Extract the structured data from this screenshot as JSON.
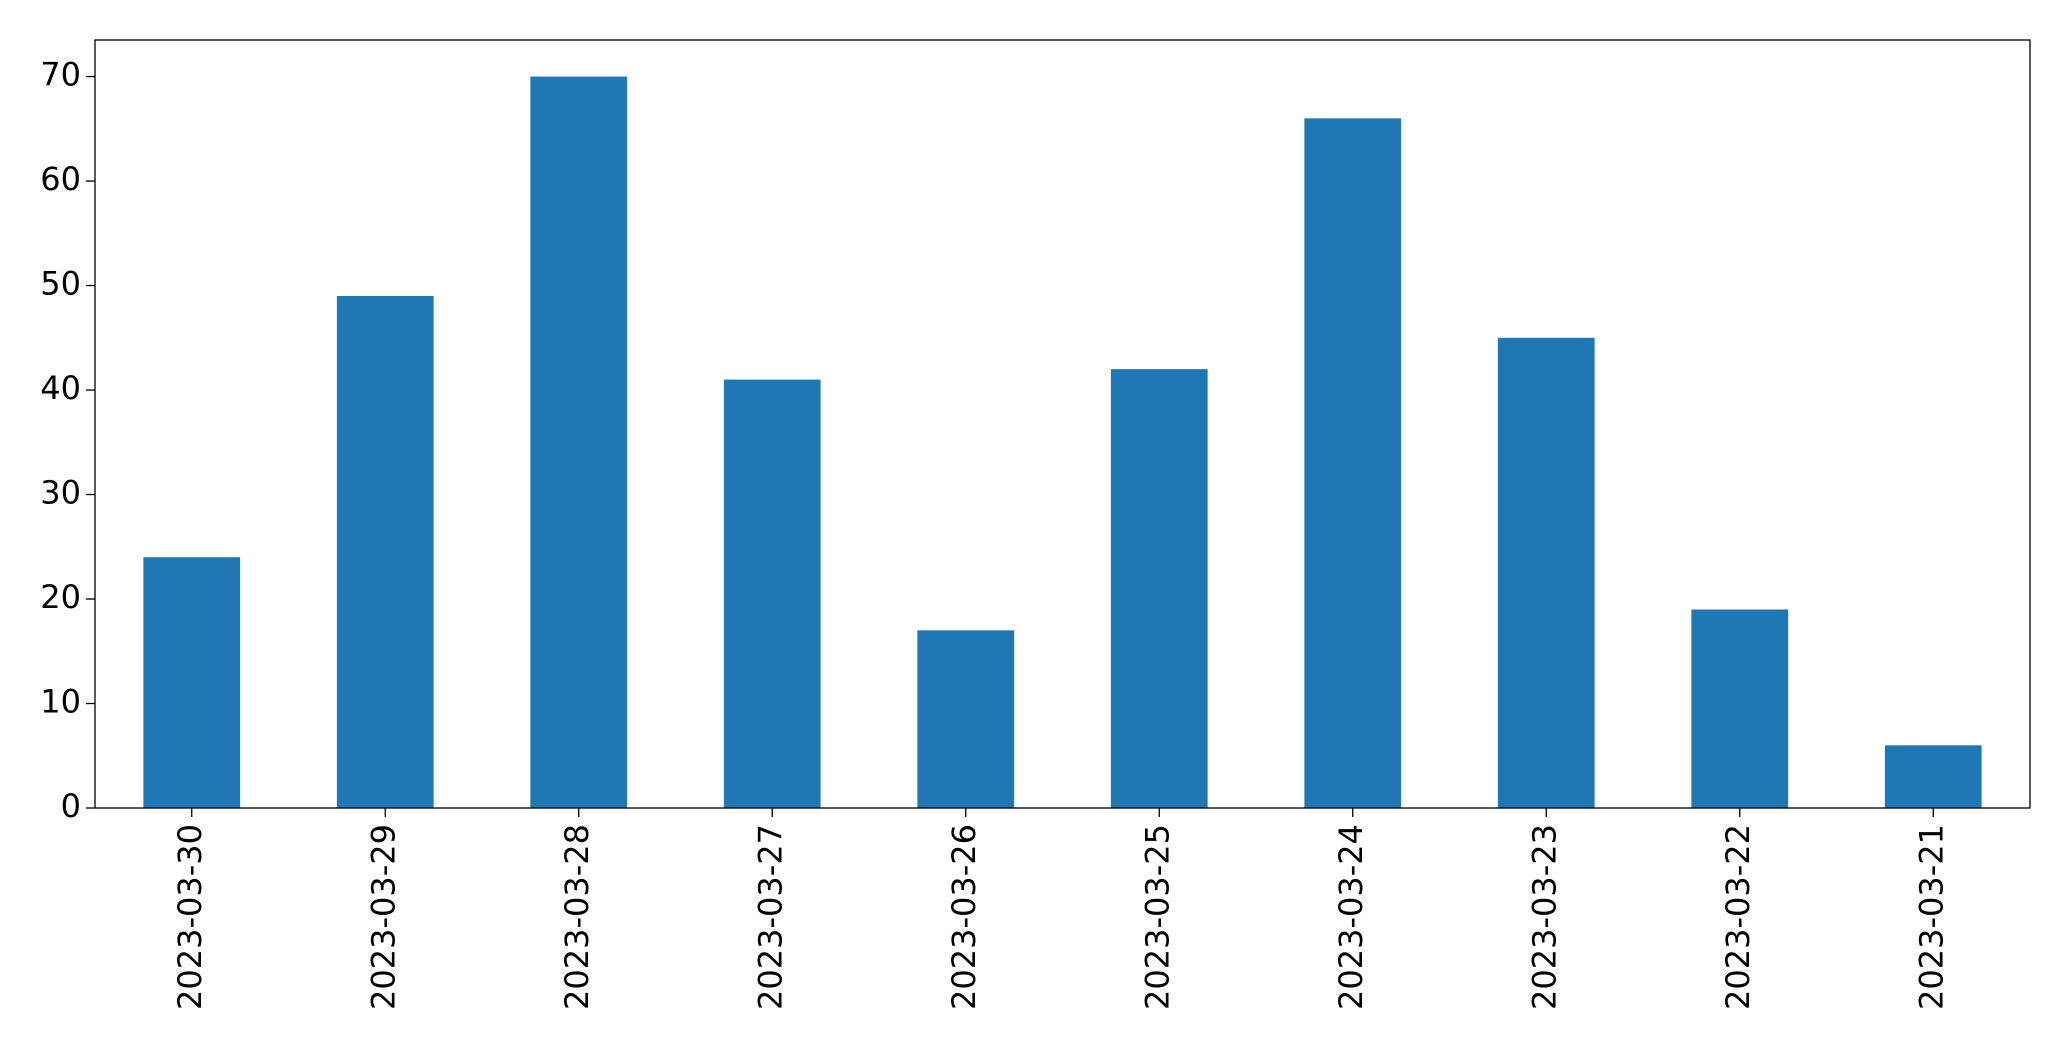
{
  "chart_data": {
    "type": "bar",
    "categories": [
      "2023-03-30",
      "2023-03-29",
      "2023-03-28",
      "2023-03-27",
      "2023-03-26",
      "2023-03-25",
      "2023-03-24",
      "2023-03-23",
      "2023-03-22",
      "2023-03-21"
    ],
    "values": [
      24,
      49,
      70,
      41,
      17,
      42,
      66,
      45,
      19,
      6
    ],
    "color": "#1f77b4",
    "ylim": [
      0,
      73.5
    ],
    "yticks": [
      0,
      10,
      20,
      30,
      40,
      50,
      60,
      70
    ],
    "grid": false
  }
}
